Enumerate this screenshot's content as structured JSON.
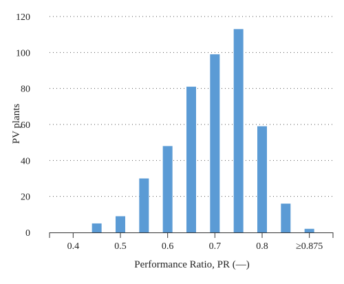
{
  "chart_data": {
    "type": "bar",
    "xlabel": "Performance Ratio, PR (—)",
    "ylabel": "PV plants",
    "ylim": [
      0,
      120
    ],
    "y_ticks": [
      0,
      20,
      40,
      60,
      80,
      100,
      120
    ],
    "x_ticks": [
      {
        "value": 0.4,
        "label": "0.4"
      },
      {
        "value": 0.5,
        "label": "0.5"
      },
      {
        "value": 0.6,
        "label": "0.6"
      },
      {
        "value": 0.7,
        "label": "0.7"
      },
      {
        "value": 0.8,
        "label": "0.8"
      },
      {
        "value": 0.9,
        "label": "≥0.875"
      }
    ],
    "x_range": [
      0.35,
      0.95
    ],
    "bin_centers": [
      0.45,
      0.5,
      0.55,
      0.6,
      0.65,
      0.7,
      0.75,
      0.8,
      0.85,
      0.9
    ],
    "values": [
      5,
      9,
      30,
      48,
      81,
      99,
      113,
      59,
      16,
      2
    ],
    "bar_color": "#5b9bd5",
    "grid": "horizontal dotted",
    "legend": "none"
  }
}
